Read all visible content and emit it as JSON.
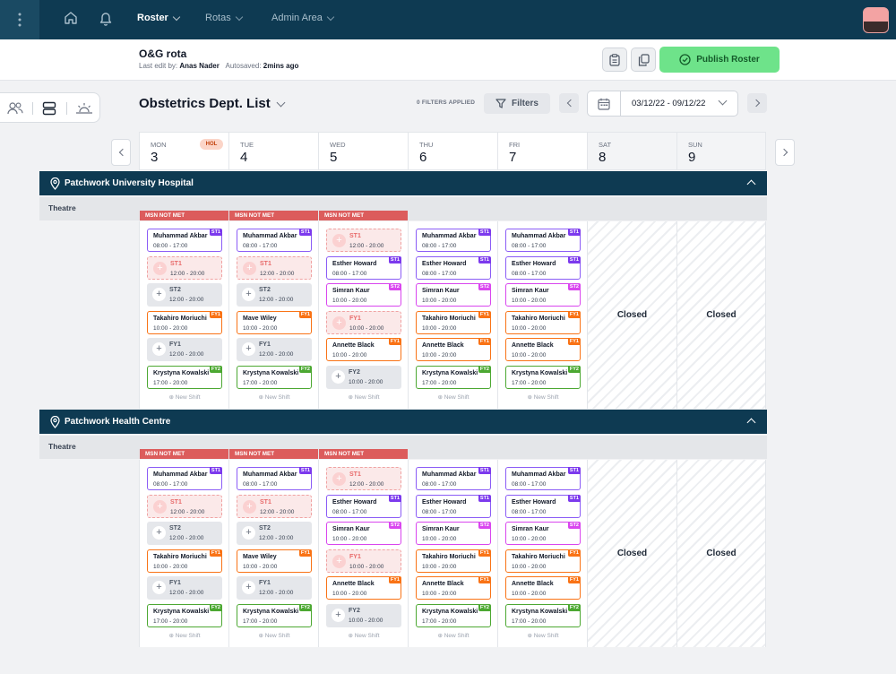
{
  "topbar": {
    "nav": [
      {
        "label": "Roster",
        "active": true
      },
      {
        "label": "Rotas",
        "active": false
      },
      {
        "label": "Admin Area",
        "active": false
      }
    ]
  },
  "rota": {
    "title": "O&G rota",
    "last_edit_label": "Last edit by:",
    "last_edit_by": "Anas Nader",
    "autosaved_label": "Autosaved:",
    "autosaved_value": "2mins ago",
    "publish_label": "Publish Roster"
  },
  "toolbar": {
    "list_title": "Obstetrics Dept. List",
    "filters_applied": "0 FILTERS APPLIED",
    "filters_label": "Filters",
    "date_range": "03/12/22 - 09/12/22"
  },
  "days": [
    {
      "name": "MON",
      "num": "3",
      "badge": "HOL"
    },
    {
      "name": "TUE",
      "num": "4",
      "badge": ""
    },
    {
      "name": "WED",
      "num": "5",
      "badge": ""
    },
    {
      "name": "THU",
      "num": "6",
      "badge": ""
    },
    {
      "name": "FRI",
      "num": "7",
      "badge": ""
    },
    {
      "name": "SAT",
      "num": "8",
      "badge": ""
    },
    {
      "name": "SUN",
      "num": "9",
      "badge": ""
    }
  ],
  "labels": {
    "msn": "MSN NOT MET",
    "new_shift": "New Shift",
    "closed": "Closed",
    "theatre": "Theatre"
  },
  "locations": [
    {
      "name": "Patchwork University Hospital"
    },
    {
      "name": "Patchwork Health Centre"
    }
  ],
  "shifts": {
    "mon": [
      {
        "kind": "filled",
        "grade": "ST1",
        "name": "Muhammad Akbar",
        "time": "08:00 - 17:00"
      },
      {
        "kind": "empty",
        "grade": "ST1",
        "name": "ST1",
        "time": "12:00 - 20:00"
      },
      {
        "kind": "grey",
        "grade": "ST2",
        "name": "ST2",
        "time": "12:00 - 20:00"
      },
      {
        "kind": "filled",
        "grade": "FY1",
        "name": "Takahiro Moriuchi",
        "time": "10:00 - 20:00"
      },
      {
        "kind": "grey",
        "grade": "FY1",
        "name": "FY1",
        "time": "12:00 - 20:00"
      },
      {
        "kind": "filled",
        "grade": "FY2",
        "name": "Krystyna Kowalski",
        "time": "17:00 - 20:00"
      }
    ],
    "tue": [
      {
        "kind": "filled",
        "grade": "ST1",
        "name": "Muhammad Akbar",
        "time": "08:00 - 17:00"
      },
      {
        "kind": "empty",
        "grade": "ST1",
        "name": "ST1",
        "time": "12:00 - 20:00"
      },
      {
        "kind": "grey",
        "grade": "ST2",
        "name": "ST2",
        "time": "12:00 - 20:00"
      },
      {
        "kind": "filled",
        "grade": "FY1",
        "name": "Mave Wiley",
        "time": "10:00 - 20:00"
      },
      {
        "kind": "grey",
        "grade": "FY1",
        "name": "FY1",
        "time": "12:00 - 20:00"
      },
      {
        "kind": "filled",
        "grade": "FY2",
        "name": "Krystyna Kowalski",
        "time": "17:00 - 20:00"
      }
    ],
    "wed": [
      {
        "kind": "empty",
        "grade": "ST1",
        "name": "ST1",
        "time": "12:00 - 20:00"
      },
      {
        "kind": "filled",
        "grade": "ST1",
        "name": "Esther Howard",
        "time": "08:00 - 17:00"
      },
      {
        "kind": "filled",
        "grade": "ST2",
        "name": "Simran Kaur",
        "time": "10:00 - 20:00"
      },
      {
        "kind": "empty",
        "grade": "FY1",
        "name": "FY1",
        "time": "10:00 - 20:00"
      },
      {
        "kind": "filled",
        "grade": "FY1",
        "name": "Annette Black",
        "time": "10:00 - 20:00"
      },
      {
        "kind": "grey",
        "grade": "FY2",
        "name": "FY2",
        "time": "10:00 - 20:00"
      }
    ],
    "thu": [
      {
        "kind": "filled",
        "grade": "ST1",
        "name": "Muhammad Akbar",
        "time": "08:00 - 17:00"
      },
      {
        "kind": "filled",
        "grade": "ST1",
        "name": "Esther Howard",
        "time": "08:00 - 17:00"
      },
      {
        "kind": "filled",
        "grade": "ST2",
        "name": "Simran Kaur",
        "time": "10:00 - 20:00"
      },
      {
        "kind": "filled",
        "grade": "FY1",
        "name": "Takahiro Moriuchi",
        "time": "10:00 - 20:00"
      },
      {
        "kind": "filled",
        "grade": "FY1",
        "name": "Annette Black",
        "time": "10:00 - 20:00"
      },
      {
        "kind": "filled",
        "grade": "FY2",
        "name": "Krystyna Kowalski",
        "time": "17:00 - 20:00"
      }
    ],
    "fri": [
      {
        "kind": "filled",
        "grade": "ST1",
        "name": "Muhammad Akbar",
        "time": "08:00 - 17:00"
      },
      {
        "kind": "filled",
        "grade": "ST1",
        "name": "Esther Howard",
        "time": "08:00 - 17:00"
      },
      {
        "kind": "filled",
        "grade": "ST2",
        "name": "Simran Kaur",
        "time": "10:00 - 20:00"
      },
      {
        "kind": "filled",
        "grade": "FY1",
        "name": "Takahiro Moriuchi",
        "time": "10:00 - 20:00"
      },
      {
        "kind": "filled",
        "grade": "FY1",
        "name": "Annette Black",
        "time": "10:00 - 20:00"
      },
      {
        "kind": "filled",
        "grade": "FY2",
        "name": "Krystyna Kowalski",
        "time": "17:00 - 20:00"
      }
    ]
  },
  "icons": {
    "menu": "kebab-icon",
    "home": "home-icon",
    "bell": "bell-icon",
    "calendar": "calendar-icon",
    "filter": "filter-icon",
    "location": "location-pin-icon"
  }
}
